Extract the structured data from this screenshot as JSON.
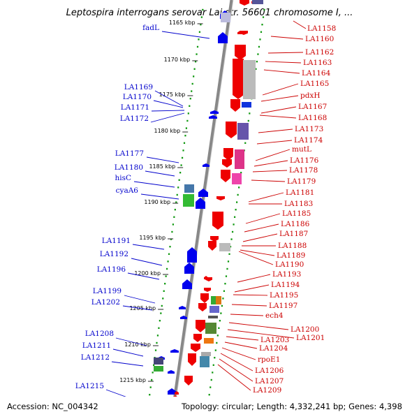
{
  "title": "Leptospira interrogans serovar Lai str. 56601 chromosome I, ...",
  "footer": {
    "accession": "Accession: NC_004342",
    "topology": "Topology: circular; Length: 4,332,241 bp; Genes: 4,398"
  },
  "colors": {
    "forward": "#ee0000",
    "reverse": "#0000ee",
    "axis": "#888888",
    "dots": "#119911",
    "left_label": "#0000cc",
    "right_label": "#cc0000"
  },
  "scale": [
    "1165 kbp",
    "1170 kbp",
    "1175 kbp",
    "1180 kbp",
    "1185 kbp",
    "1190 kbp",
    "1195 kbp",
    "1200 kbp",
    "1205 kbp",
    "1210 kbp",
    "1215 kbp"
  ],
  "left_genes": [
    "fadL",
    "LA1169",
    "LA1170",
    "LA1171",
    "LA1172",
    "LA1177",
    "LA1180",
    "hisC",
    "cyaA6",
    "LA1191",
    "LA1192",
    "LA1196",
    "LA1199",
    "LA1202",
    "LA1208",
    "LA1211",
    "LA1212",
    "LA1215"
  ],
  "right_genes": [
    "LA1158",
    "LA1160",
    "LA1162",
    "LA1163",
    "LA1164",
    "LA1165",
    "pdxH",
    "LA1167",
    "LA1168",
    "LA1173",
    "LA1174",
    "mutL",
    "LA1176",
    "LA1178",
    "LA1179",
    "LA1181",
    "LA1183",
    "LA1185",
    "LA1186",
    "LA1187",
    "LA1188",
    "LA1189",
    "LA1190",
    "LA1193",
    "LA1194",
    "LA1195",
    "LA1197",
    "ech4",
    "LA1200",
    "LA1201",
    "LA1203",
    "LA1204",
    "rpoE1",
    "LA1206",
    "LA1207",
    "LA1209"
  ]
}
